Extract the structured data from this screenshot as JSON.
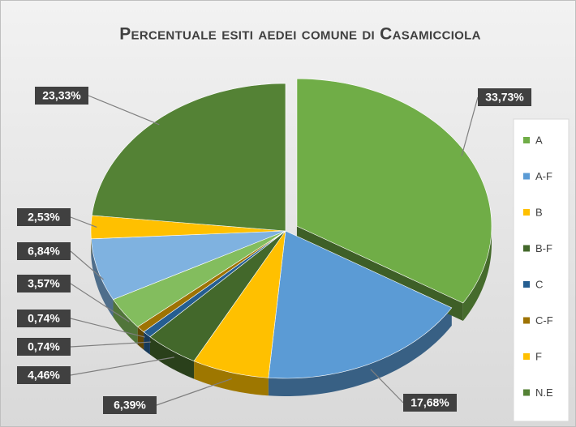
{
  "chart_data": {
    "type": "pie3d",
    "title": "Percentuale esiti aedei comune di Casamicciola",
    "categories": [
      "A",
      "A-F",
      "B",
      "B-F",
      "C",
      "C-F",
      null,
      null,
      "F",
      "N.E"
    ],
    "values": [
      33.73,
      17.68,
      6.39,
      4.46,
      0.74,
      0.74,
      3.57,
      6.84,
      2.53,
      23.33
    ],
    "value_labels": [
      "33,73%",
      "17,68%",
      "6,39%",
      "4,46%",
      "0,74%",
      "0,74%",
      "3,57%",
      "6,84%",
      "2,53%",
      "23,33%"
    ],
    "colors": [
      "#70ad47",
      "#5b9bd5",
      "#ffc000",
      "#43682b",
      "#255e91",
      "#9e7303",
      "#83bd5e",
      "#7fb2e0",
      "#ffc000",
      "#548235"
    ],
    "legend": "right"
  }
}
